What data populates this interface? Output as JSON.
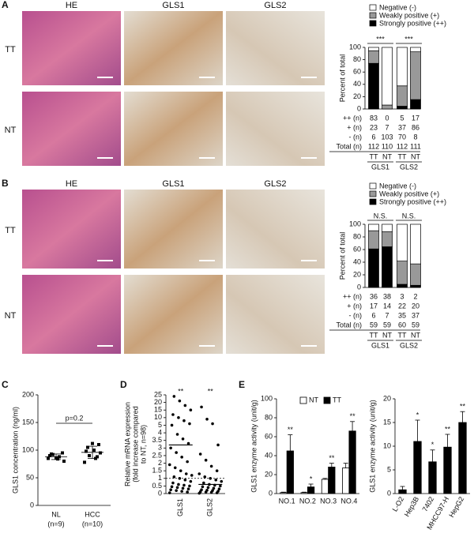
{
  "image_panels": [
    {
      "letter": "A",
      "columns": [
        "HE",
        "GLS1",
        "GLS2"
      ],
      "rows": [
        "TT",
        "NT"
      ]
    },
    {
      "letter": "B",
      "columns": [
        "HE",
        "GLS1",
        "GLS2"
      ],
      "rows": [
        "TT",
        "NT"
      ]
    }
  ],
  "chart_data": [
    {
      "type": "stacked_table",
      "categories": [
        "TT",
        "NT",
        "TT",
        "NT"
      ],
      "groups": [
        "GLS1",
        "GLS2"
      ],
      "annotations": [
        "***",
        "***"
      ],
      "series": [
        {
          "name": "Negative (-)",
          "color": "#ffffff",
          "values": [
            5.4,
            93.6,
            62.5,
            7.2
          ]
        },
        {
          "name": "Weakly positive (+)",
          "color": "#999999",
          "values": [
            20.5,
            6.4,
            33.0,
            77.5
          ]
        },
        {
          "name": "Strongly positive (++)",
          "color": "#000000",
          "values": [
            74.1,
            0,
            4.5,
            15.3
          ]
        }
      ],
      "ylabel": "Percent of total",
      "ylim": [
        0,
        100
      ],
      "yticks": [
        0,
        20,
        40,
        60,
        80,
        100
      ],
      "table": {
        "row_labels": [
          "++ (n)",
          "+ (n)",
          "- (n)",
          "Total (n)"
        ],
        "rows": [
          [
            83,
            0,
            5,
            17
          ],
          [
            23,
            7,
            37,
            86
          ],
          [
            6,
            103,
            70,
            8
          ],
          [
            112,
            110,
            112,
            111
          ]
        ]
      }
    },
    {
      "type": "stacked_table",
      "categories": [
        "TT",
        "NT",
        "TT",
        "NT"
      ],
      "groups": [
        "GLS1",
        "GLS2"
      ],
      "annotations": [
        "N.S.",
        "N.S."
      ],
      "series": [
        {
          "name": "Negative (-)",
          "color": "#ffffff",
          "values": [
            10.2,
            11.9,
            58.3,
            62.7
          ]
        },
        {
          "name": "Weakly positive (+)",
          "color": "#999999",
          "values": [
            28.8,
            23.7,
            36.7,
            33.9
          ]
        },
        {
          "name": "Strongly positive (++)",
          "color": "#000000",
          "values": [
            61.0,
            64.4,
            5.0,
            3.4
          ]
        }
      ],
      "ylabel": "Percent of total",
      "ylim": [
        0,
        100
      ],
      "yticks": [
        0,
        20,
        40,
        60,
        80,
        100
      ],
      "table": {
        "row_labels": [
          "++ (n)",
          "+ (n)",
          "- (n)",
          "Total (n)"
        ],
        "rows": [
          [
            36,
            38,
            3,
            2
          ],
          [
            17,
            14,
            22,
            20
          ],
          [
            6,
            7,
            35,
            37
          ],
          [
            59,
            59,
            60,
            59
          ]
        ]
      }
    },
    {
      "type": "dot",
      "panel": "C",
      "categories": [
        "NL",
        "HCC"
      ],
      "category_notes": [
        "(n=9)",
        "(n=10)"
      ],
      "points": [
        [
          85,
          88,
          92,
          80,
          84,
          93,
          95,
          86,
          90
        ],
        [
          78,
          85,
          90,
          95,
          100,
          105,
          110,
          112,
          98,
          88
        ]
      ],
      "means": [
        88,
        96
      ],
      "errors": [
        5,
        11
      ],
      "annotation": "p=0.2",
      "ylabel": "GLS1 concentration (ng/ml)",
      "ylim": [
        0,
        200
      ],
      "yticks": [
        0,
        50,
        100,
        150,
        200
      ]
    },
    {
      "type": "strip",
      "panel": "D",
      "categories": [
        "GLS1",
        "GLS2"
      ],
      "points": [
        [
          0.05,
          0.1,
          0.15,
          0.2,
          0.25,
          0.3,
          0.35,
          0.4,
          0.45,
          0.5,
          0.55,
          0.6,
          0.7,
          0.8,
          0.9,
          1.0,
          1.1,
          1.2,
          1.3,
          1.5,
          1.7,
          1.9,
          2.1,
          2.4,
          2.7,
          3.0,
          3.3,
          3.6,
          3.9,
          5,
          6,
          8,
          10,
          12,
          15,
          18,
          21,
          24
        ],
        [
          0.02,
          0.05,
          0.08,
          0.1,
          0.12,
          0.15,
          0.2,
          0.22,
          0.25,
          0.3,
          0.35,
          0.4,
          0.45,
          0.5,
          0.55,
          0.6,
          0.7,
          0.8,
          0.9,
          1.0,
          1.1,
          1.3,
          1.5,
          1.8,
          2.2,
          2.6,
          3.2,
          6,
          9,
          17
        ]
      ],
      "means": [
        3.2,
        0.6
      ],
      "annotations": [
        "**",
        "**"
      ],
      "reference_line": 1,
      "ylabel_lines": [
        "Relative mRNA expression",
        "(fold increase compared",
        "to NT, n=98)"
      ],
      "ylim": [
        0,
        25
      ],
      "yticks": [
        0,
        0.5,
        1,
        1.5,
        2,
        2.5,
        3,
        3.5,
        4,
        5,
        10,
        15,
        20,
        25
      ]
    },
    {
      "type": "bar_error",
      "panel": "E",
      "categories": [
        "NO.1",
        "NO.2",
        "NO.3",
        "NO.4"
      ],
      "legend": true,
      "rotate_labels": false,
      "series": [
        {
          "name": "NT",
          "color": "#ffffff",
          "values": [
            1,
            1,
            15,
            27
          ],
          "errors": [
            0.5,
            0.5,
            1,
            5
          ]
        },
        {
          "name": "TT",
          "color": "#000000",
          "values": [
            45,
            7,
            28,
            66
          ],
          "errors": [
            17,
            3,
            4,
            10
          ]
        }
      ],
      "annotations": [
        "**",
        "*",
        "**",
        "**"
      ],
      "ylabel": "GLS1 enzyme activity (unit/g)",
      "ylim": [
        0,
        100
      ],
      "yticks": [
        0,
        20,
        40,
        60,
        80,
        100
      ]
    },
    {
      "type": "bar_error",
      "categories": [
        "L-O2",
        "Hep3B",
        "7402",
        "MHCC97-H",
        "HepG2"
      ],
      "legend": false,
      "rotate_labels": true,
      "series": [
        {
          "name": "GLS1",
          "color": "#000000",
          "values": [
            0.8,
            11,
            6.7,
            9.8,
            15
          ],
          "errors": [
            0.7,
            4.5,
            2.5,
            2.7,
            2.3
          ]
        }
      ],
      "annotations": [
        null,
        "*",
        "*",
        "**",
        "**"
      ],
      "ylabel": "GLS1 enzyme activity (unit/g)",
      "ylim": [
        0,
        20
      ],
      "yticks": [
        0,
        5,
        10,
        15,
        20
      ]
    }
  ]
}
